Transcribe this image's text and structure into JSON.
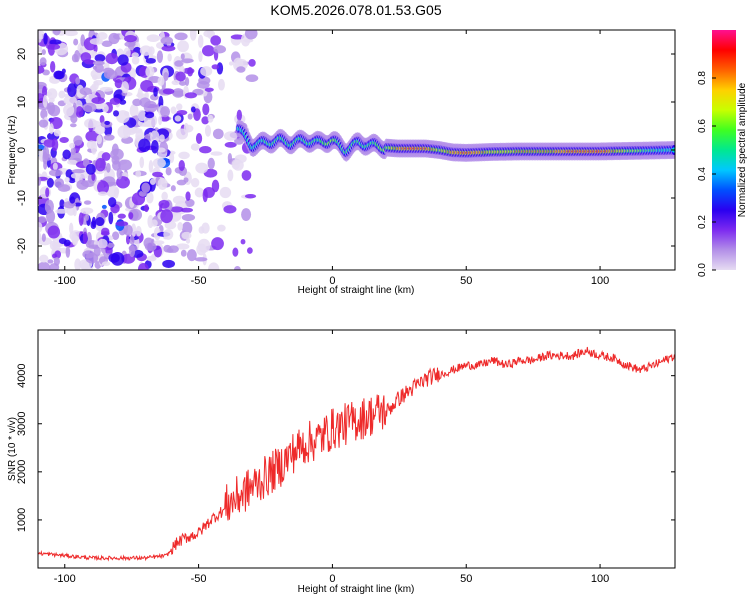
{
  "title": "KOM5.2026.078.01.53.G05",
  "chart_data": [
    {
      "type": "heatmap",
      "xlabel": "Height of straight line (km)",
      "ylabel": "Frequency (Hz)",
      "xlim": [
        -110,
        128
      ],
      "ylim": [
        -25,
        25
      ],
      "xticks": [
        -100,
        -50,
        0,
        50,
        100
      ],
      "yticks": [
        -20,
        -10,
        0,
        10,
        20
      ],
      "colorbar": {
        "label": "Normalized spectral amplitude",
        "range": [
          0,
          1
        ],
        "ticks": [
          "0.0",
          "0.2",
          "0.4",
          "0.6",
          "0.8"
        ],
        "tick_values": [
          0.0,
          0.2,
          0.4,
          0.6,
          0.8
        ],
        "colors": [
          "#e6dcf2",
          "#b38fe8",
          "#7d2af0",
          "#2a00f0",
          "#0050ff",
          "#00c8ff",
          "#00e890",
          "#40ff20",
          "#c8ff00",
          "#ffd000",
          "#ff6000",
          "#ff0000",
          "#ff1090"
        ]
      },
      "signal_track": {
        "description": "narrow band near 0 Hz",
        "noise_x_range": [
          -110,
          -30
        ],
        "track_x": [
          -35,
          -30,
          -25,
          -20,
          -15,
          -10,
          -5,
          0,
          5,
          10,
          15,
          20,
          25,
          30,
          35,
          40,
          45,
          50,
          55,
          60,
          70,
          80,
          90,
          100,
          110,
          120,
          128
        ],
        "track_freq": [
          4.5,
          1,
          1.5,
          2,
          1.5,
          2,
          1.5,
          2,
          0,
          1.5,
          1,
          0.5,
          0.3,
          0.3,
          0.3,
          0,
          -0.5,
          -0.6,
          -0.5,
          -0.4,
          -0.3,
          -0.3,
          -0.3,
          -0.3,
          -0.2,
          -0.1,
          0
        ],
        "track_amp": [
          0.5,
          0.5,
          0.55,
          0.55,
          0.55,
          0.6,
          0.6,
          0.65,
          0.55,
          0.55,
          0.6,
          0.65,
          0.85,
          0.95,
          0.9,
          0.7,
          0.85,
          0.9,
          0.85,
          0.75,
          0.8,
          0.8,
          0.9,
          0.95,
          0.7,
          0.55,
          0.5
        ]
      }
    },
    {
      "type": "line",
      "xlabel": "Height of straight line (km)",
      "ylabel": "SNR (10 * v/v)",
      "xlim": [
        -110,
        128
      ],
      "ylim": [
        0,
        4950
      ],
      "xticks": [
        -100,
        -50,
        0,
        50,
        100
      ],
      "yticks": [
        1000,
        2000,
        3000,
        4000
      ],
      "color": "#ee2a2a",
      "series": [
        {
          "name": "SNR",
          "x": [
            -110,
            -100,
            -90,
            -80,
            -70,
            -62,
            -58,
            -55,
            -50,
            -45,
            -40,
            -35,
            -30,
            -25,
            -20,
            -15,
            -10,
            -5,
            0,
            5,
            10,
            15,
            20,
            25,
            30,
            35,
            40,
            45,
            50,
            55,
            60,
            65,
            70,
            75,
            80,
            85,
            90,
            95,
            100,
            105,
            110,
            115,
            120,
            128
          ],
          "y": [
            300,
            250,
            200,
            200,
            200,
            250,
            500,
            600,
            700,
            1000,
            1200,
            1400,
            1600,
            1800,
            2000,
            2300,
            2500,
            2600,
            2800,
            2900,
            3000,
            3100,
            3200,
            3500,
            3700,
            3900,
            4000,
            4100,
            4200,
            4200,
            4300,
            4200,
            4300,
            4300,
            4400,
            4400,
            4400,
            4500,
            4400,
            4350,
            4200,
            4100,
            4200,
            4400
          ]
        }
      ]
    }
  ]
}
